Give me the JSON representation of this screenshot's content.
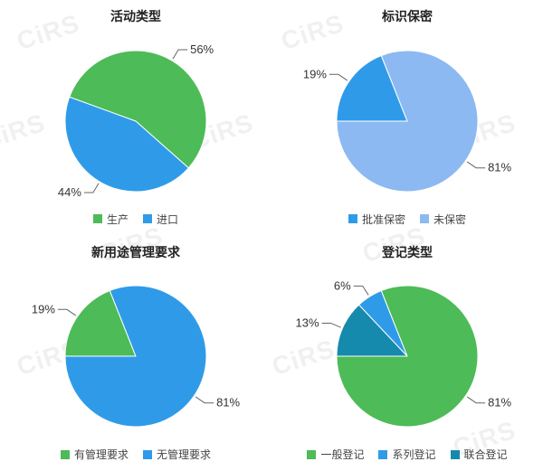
{
  "background_color": "#ffffff",
  "watermark": {
    "text": "CiRS",
    "color": "rgba(0,0,0,0.06)",
    "fontsize": 28
  },
  "title_fontsize": 14,
  "label_fontsize": 13,
  "legend_fontsize": 12,
  "charts": [
    {
      "title": "活动类型",
      "type": "pie",
      "start_angle": -70,
      "slices": [
        {
          "label": "生产",
          "value": 56,
          "text": "56%",
          "color": "#4dbb57"
        },
        {
          "label": "进口",
          "value": 44,
          "text": "44%",
          "color": "#2f9be8"
        }
      ],
      "legend": [
        {
          "label": "生产",
          "color": "#4dbb57"
        },
        {
          "label": "进口",
          "color": "#2f9be8"
        }
      ]
    },
    {
      "title": "标识保密",
      "type": "pie",
      "start_angle": -90,
      "slices": [
        {
          "label": "批准保密",
          "value": 19,
          "text": "19%",
          "color": "#2f9be8"
        },
        {
          "label": "未保密",
          "value": 81,
          "text": "81%",
          "color": "#8cb9f2"
        }
      ],
      "legend": [
        {
          "label": "批准保密",
          "color": "#2f9be8"
        },
        {
          "label": "未保密",
          "color": "#8cb9f2"
        }
      ]
    },
    {
      "title": "新用途管理要求",
      "type": "pie",
      "start_angle": -90,
      "slices": [
        {
          "label": "有管理要求",
          "value": 19,
          "text": "19%",
          "color": "#4dbb57"
        },
        {
          "label": "无管理要求",
          "value": 81,
          "text": "81%",
          "color": "#2f9be8"
        }
      ],
      "legend": [
        {
          "label": "有管理要求",
          "color": "#4dbb57"
        },
        {
          "label": "无管理要求",
          "color": "#2f9be8"
        }
      ]
    },
    {
      "title": "登记类型",
      "type": "pie",
      "start_angle": -90,
      "slices": [
        {
          "label": "联合登记",
          "value": 13,
          "text": "13%",
          "color": "#168aad"
        },
        {
          "label": "系列登记",
          "value": 6,
          "text": "6%",
          "color": "#2f9be8"
        },
        {
          "label": "一般登记",
          "value": 81,
          "text": "81%",
          "color": "#4dbb57"
        }
      ],
      "legend": [
        {
          "label": "一般登记",
          "color": "#4dbb57"
        },
        {
          "label": "系列登记",
          "color": "#2f9be8"
        },
        {
          "label": "联合登记",
          "color": "#168aad"
        }
      ]
    }
  ]
}
